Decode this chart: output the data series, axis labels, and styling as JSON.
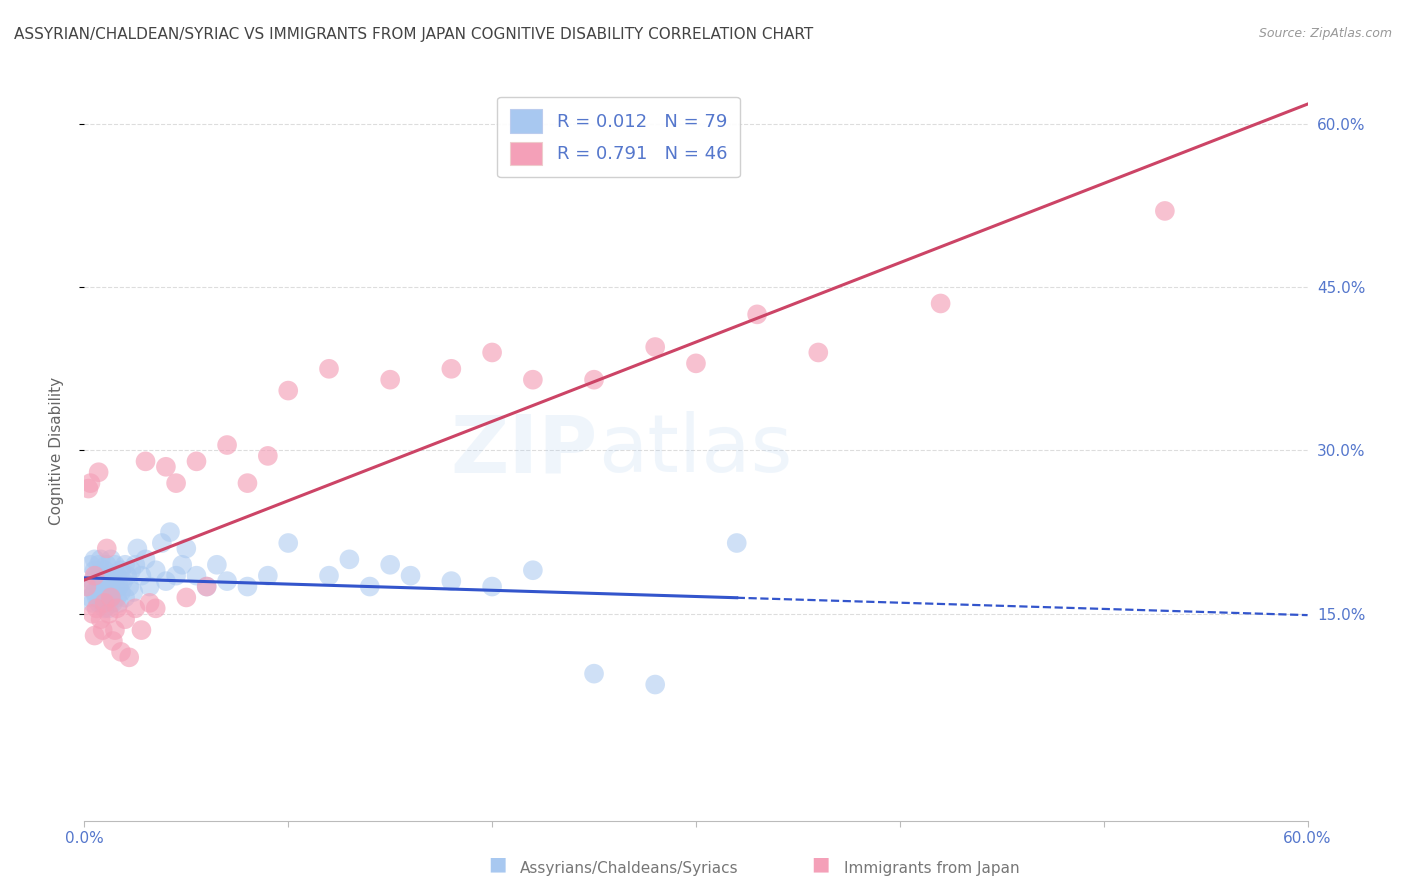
{
  "title": "ASSYRIAN/CHALDEAN/SYRIAC VS IMMIGRANTS FROM JAPAN COGNITIVE DISABILITY CORRELATION CHART",
  "source": "Source: ZipAtlas.com",
  "ylabel": "Cognitive Disability",
  "xlim": [
    0.0,
    0.6
  ],
  "ylim": [
    -0.04,
    0.64
  ],
  "yticks": [
    0.15,
    0.3,
    0.45,
    0.6
  ],
  "ytick_labels": [
    "15.0%",
    "30.0%",
    "45.0%",
    "60.0%"
  ],
  "color_blue": "#A8C8F0",
  "color_pink": "#F4A0B8",
  "line_blue": "#3355CC",
  "line_pink": "#CC4466",
  "legend_R1": "0.012",
  "legend_N1": "79",
  "legend_R2": "0.791",
  "legend_N2": "46",
  "legend_label1": "Assyrians/Chaldeans/Syriacs",
  "legend_label2": "Immigrants from Japan",
  "watermark_zip": "ZIP",
  "watermark_atlas": "atlas",
  "grid_color": "#DDDDDD",
  "background_color": "#FFFFFF",
  "title_color": "#444444",
  "axis_label_color": "#5577CC",
  "blue_scatter_x": [
    0.002,
    0.003,
    0.003,
    0.004,
    0.004,
    0.005,
    0.005,
    0.005,
    0.006,
    0.006,
    0.007,
    0.007,
    0.007,
    0.008,
    0.008,
    0.008,
    0.009,
    0.009,
    0.009,
    0.01,
    0.01,
    0.01,
    0.011,
    0.011,
    0.011,
    0.012,
    0.012,
    0.012,
    0.013,
    0.013,
    0.013,
    0.014,
    0.014,
    0.014,
    0.015,
    0.015,
    0.016,
    0.016,
    0.017,
    0.017,
    0.018,
    0.018,
    0.019,
    0.02,
    0.02,
    0.021,
    0.022,
    0.023,
    0.024,
    0.025,
    0.026,
    0.028,
    0.03,
    0.032,
    0.035,
    0.038,
    0.04,
    0.042,
    0.045,
    0.048,
    0.05,
    0.055,
    0.06,
    0.065,
    0.07,
    0.08,
    0.09,
    0.1,
    0.12,
    0.13,
    0.14,
    0.15,
    0.16,
    0.18,
    0.2,
    0.22,
    0.25,
    0.28,
    0.32
  ],
  "blue_scatter_y": [
    0.175,
    0.165,
    0.195,
    0.18,
    0.16,
    0.19,
    0.17,
    0.2,
    0.165,
    0.185,
    0.175,
    0.195,
    0.16,
    0.185,
    0.17,
    0.2,
    0.175,
    0.16,
    0.185,
    0.17,
    0.19,
    0.155,
    0.18,
    0.165,
    0.195,
    0.17,
    0.185,
    0.155,
    0.18,
    0.165,
    0.2,
    0.17,
    0.185,
    0.16,
    0.175,
    0.195,
    0.165,
    0.185,
    0.175,
    0.16,
    0.19,
    0.17,
    0.18,
    0.195,
    0.165,
    0.185,
    0.175,
    0.19,
    0.17,
    0.195,
    0.21,
    0.185,
    0.2,
    0.175,
    0.19,
    0.215,
    0.18,
    0.225,
    0.185,
    0.195,
    0.21,
    0.185,
    0.175,
    0.195,
    0.18,
    0.175,
    0.185,
    0.215,
    0.185,
    0.2,
    0.175,
    0.195,
    0.185,
    0.18,
    0.175,
    0.19,
    0.095,
    0.085,
    0.215
  ],
  "pink_scatter_x": [
    0.001,
    0.002,
    0.003,
    0.004,
    0.005,
    0.005,
    0.006,
    0.007,
    0.008,
    0.009,
    0.01,
    0.011,
    0.012,
    0.013,
    0.014,
    0.015,
    0.016,
    0.018,
    0.02,
    0.022,
    0.025,
    0.028,
    0.03,
    0.032,
    0.035,
    0.04,
    0.045,
    0.05,
    0.055,
    0.06,
    0.07,
    0.08,
    0.09,
    0.1,
    0.12,
    0.15,
    0.18,
    0.2,
    0.22,
    0.25,
    0.28,
    0.3,
    0.33,
    0.36,
    0.42,
    0.53
  ],
  "pink_scatter_y": [
    0.175,
    0.265,
    0.27,
    0.15,
    0.185,
    0.13,
    0.155,
    0.28,
    0.145,
    0.135,
    0.16,
    0.21,
    0.15,
    0.165,
    0.125,
    0.135,
    0.155,
    0.115,
    0.145,
    0.11,
    0.155,
    0.135,
    0.29,
    0.16,
    0.155,
    0.285,
    0.27,
    0.165,
    0.29,
    0.175,
    0.305,
    0.27,
    0.295,
    0.355,
    0.375,
    0.365,
    0.375,
    0.39,
    0.365,
    0.365,
    0.395,
    0.38,
    0.425,
    0.39,
    0.435,
    0.52
  ]
}
